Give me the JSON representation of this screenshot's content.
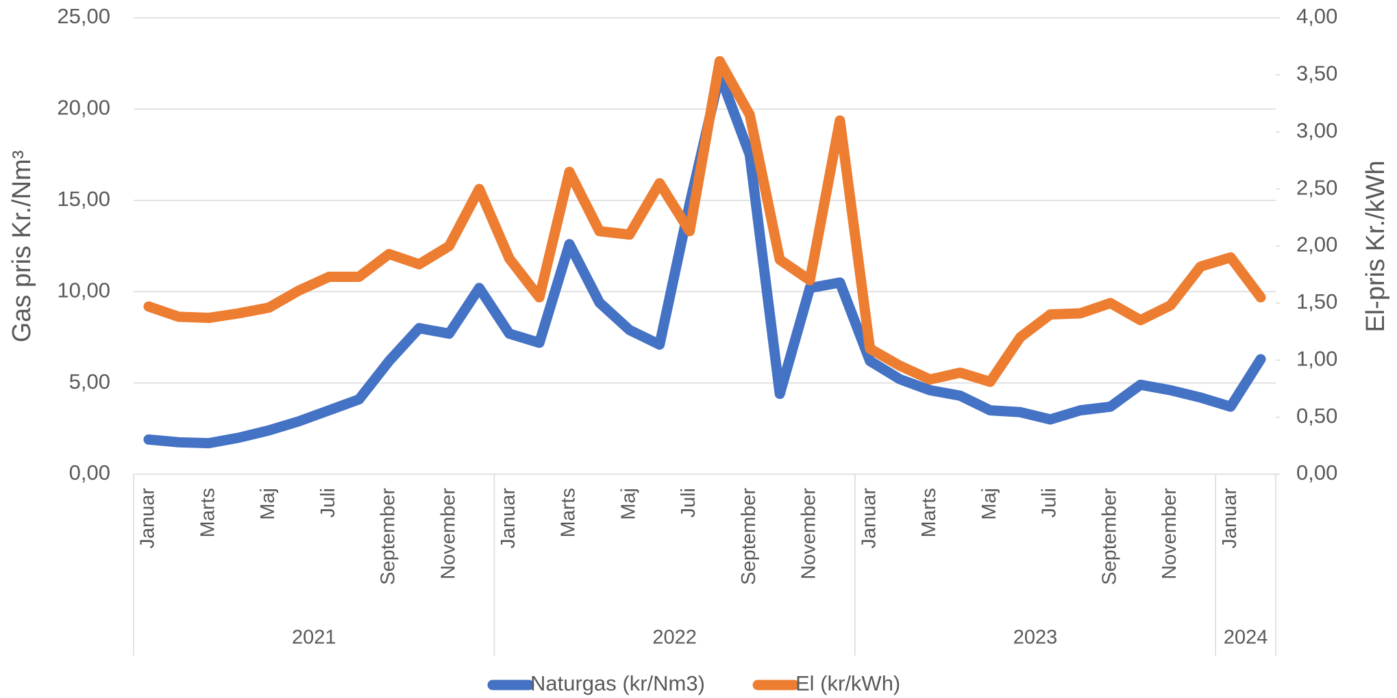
{
  "chart_data": {
    "type": "line",
    "y_label": "Gas pris Kr./Nm³",
    "y2_label": "El-pris Kr./kWh",
    "categories": [
      "Januar",
      null,
      "Marts",
      null,
      "Maj",
      null,
      "Juli",
      null,
      "September",
      null,
      "November",
      null,
      "Januar",
      null,
      "Marts",
      null,
      "Maj",
      null,
      "Juli",
      null,
      "September",
      null,
      "November",
      null,
      "Januar",
      null,
      "Marts",
      null,
      "Maj",
      null,
      "Juli",
      null,
      "September",
      null,
      "November",
      null,
      "Januar",
      null
    ],
    "x_groups": [
      {
        "label": "2021",
        "span": 12
      },
      {
        "label": "2022",
        "span": 12
      },
      {
        "label": "2023",
        "span": 12
      },
      {
        "label": "2024",
        "span": 2
      }
    ],
    "series": [
      {
        "name": "Naturgas (kr/Nm3)",
        "color": "#4472c4",
        "axis": "y",
        "values": [
          1.9,
          1.75,
          1.7,
          2.0,
          2.4,
          2.9,
          3.5,
          4.1,
          6.2,
          8.0,
          7.7,
          10.2,
          7.7,
          7.2,
          12.6,
          9.4,
          7.9,
          7.1,
          14.8,
          21.9,
          17.5,
          4.4,
          10.2,
          10.5,
          6.2,
          5.2,
          4.6,
          4.3,
          3.5,
          3.4,
          3.0,
          3.5,
          3.7,
          4.9,
          4.6,
          4.2,
          3.7,
          6.3
        ]
      },
      {
        "name": "El (kr/kWh)",
        "color": "#ed7d31",
        "axis": "y2",
        "values": [
          1.47,
          1.38,
          1.37,
          1.41,
          1.46,
          1.61,
          1.73,
          1.73,
          1.93,
          1.84,
          2.0,
          2.5,
          1.89,
          1.55,
          2.65,
          2.13,
          2.1,
          2.55,
          2.13,
          3.62,
          3.15,
          1.88,
          1.7,
          3.1,
          1.1,
          0.95,
          0.83,
          0.89,
          0.81,
          1.2,
          1.4,
          1.41,
          1.5,
          1.35,
          1.48,
          1.82,
          1.9,
          1.55
        ]
      }
    ],
    "ylim": [
      0,
      25
    ],
    "yticks": [
      {
        "value": 0,
        "label": "0,00"
      },
      {
        "value": 5,
        "label": "5,00"
      },
      {
        "value": 10,
        "label": "10,00"
      },
      {
        "value": 15,
        "label": "15,00"
      },
      {
        "value": 20,
        "label": "20,00"
      },
      {
        "value": 25,
        "label": "25,00"
      }
    ],
    "y2lim": [
      0,
      4
    ],
    "y2ticks": [
      {
        "value": 0,
        "label": "0,00"
      },
      {
        "value": 0.5,
        "label": "0,50"
      },
      {
        "value": 1,
        "label": "1,00"
      },
      {
        "value": 1.5,
        "label": "1,50"
      },
      {
        "value": 2,
        "label": "2,00"
      },
      {
        "value": 2.5,
        "label": "2,50"
      },
      {
        "value": 3,
        "label": "3,00"
      },
      {
        "value": 3.5,
        "label": "3,50"
      },
      {
        "value": 4,
        "label": "4,00"
      }
    ],
    "grid": true,
    "legend": "bottom"
  }
}
